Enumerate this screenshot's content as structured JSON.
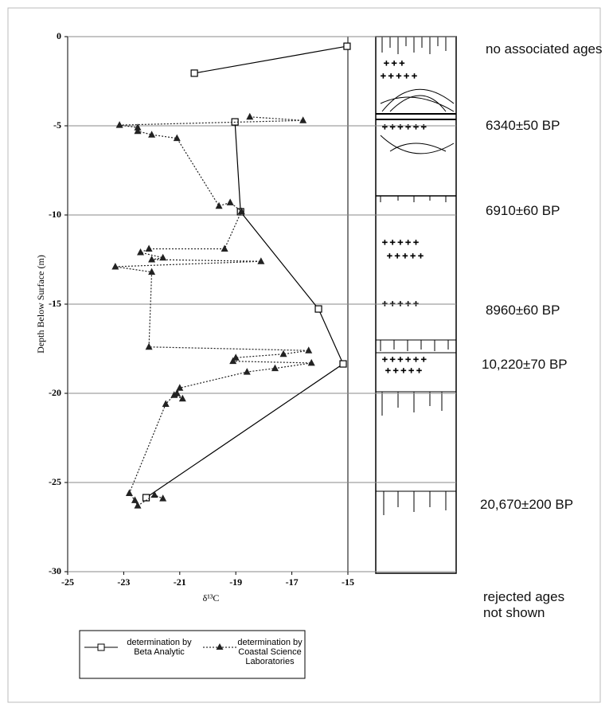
{
  "chart_data": {
    "type": "line",
    "xlabel": "δ¹³C",
    "ylabel": "Depth Below Surface (m)",
    "xlim": [
      -25,
      -15
    ],
    "xticks": [
      -25,
      -23,
      -21,
      -19,
      -17,
      -15
    ],
    "ylim": [
      -30,
      0
    ],
    "yticks": [
      0,
      -5,
      -10,
      -15,
      -20,
      -25,
      -30
    ],
    "grid": true,
    "legend": "bottom",
    "series": [
      {
        "name": "determination by Beta Analytic",
        "color": "#000000",
        "marker": "square",
        "linestyle": "solid",
        "x": [
          -15.03,
          -20.48,
          null,
          -19.03,
          -18.83,
          -16.05,
          -15.17,
          -22.2
        ],
        "values": [
          -0.54,
          -2.05,
          null,
          -4.78,
          -9.82,
          -15.27,
          -18.35,
          -25.85
        ]
      },
      {
        "name": "determination by Coastal Science Laboratories",
        "color": "#222222",
        "marker": "triangle",
        "linestyle": "dotted",
        "x": [
          -18.5,
          -16.6,
          -23.15,
          -22.5,
          -22.5,
          -22.0,
          -21.1,
          -19.6,
          -19.2,
          -18.8,
          -19.4,
          -22.1,
          -22.4,
          -21.6,
          -22.0,
          -18.1,
          -23.3,
          -22.0,
          -22.1,
          -16.4,
          -17.3,
          -19.0,
          -19.1,
          -16.3,
          -17.6,
          -18.6,
          -21.0,
          -21.1,
          -20.9,
          -21.2,
          -21.5,
          -22.8,
          -22.6,
          -22.5,
          -21.9,
          -21.6
        ],
        "values": [
          -4.5,
          -4.7,
          -4.96,
          -5.1,
          -5.3,
          -5.5,
          -5.7,
          -9.5,
          -9.3,
          -9.8,
          -11.9,
          -11.9,
          -12.1,
          -12.4,
          -12.5,
          -12.6,
          -12.9,
          -13.2,
          -17.4,
          -17.6,
          -17.8,
          -18.0,
          -18.2,
          -18.3,
          -18.6,
          -18.8,
          -19.7,
          -20.0,
          -20.3,
          -20.1,
          -20.6,
          -25.6,
          -26.0,
          -26.3,
          -25.7,
          -25.9
        ]
      }
    ]
  },
  "column_labels": [
    "no associated ages",
    "6340±50 BP",
    "6910±60 BP",
    "8960±60 BP",
    "10,220±70 BP",
    "20,670±200 BP",
    "rejected ages not shown"
  ]
}
